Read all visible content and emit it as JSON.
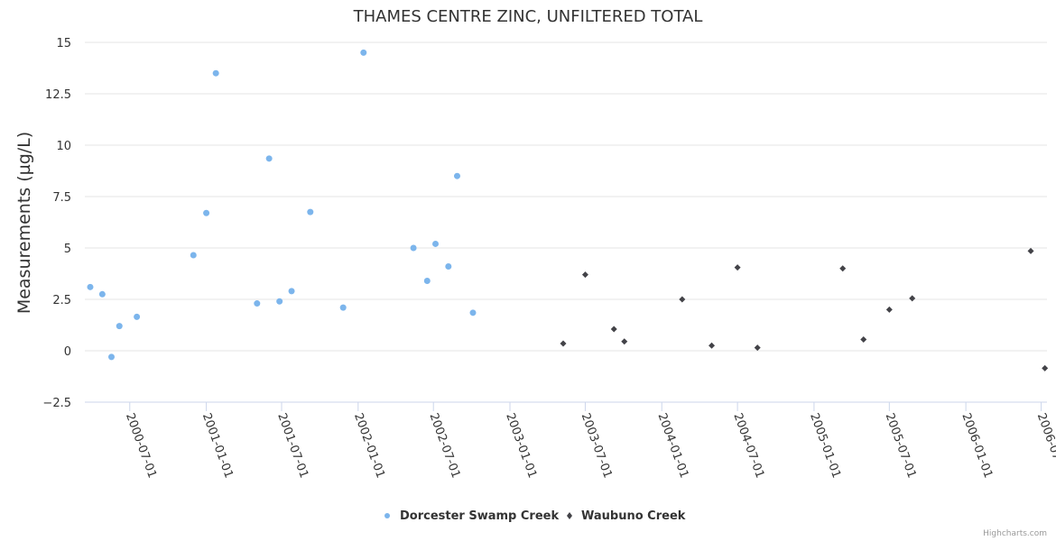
{
  "chart_data": {
    "type": "scatter",
    "title": "THAMES CENTRE ZINC, UNFILTERED TOTAL",
    "xlabel": "",
    "ylabel": "Measurements (µg/L)",
    "ylim": [
      -2.5,
      15
    ],
    "yticks": [
      -2.5,
      0,
      2.5,
      5,
      7.5,
      10,
      12.5,
      15
    ],
    "ytick_labels": [
      "−2.5",
      "0",
      "2.5",
      "5",
      "7.5",
      "10",
      "12.5",
      "15"
    ],
    "xlim": [
      "2000-03-15",
      "2006-07-15"
    ],
    "xticks": [
      "2000-07-01",
      "2001-01-01",
      "2001-07-01",
      "2002-01-01",
      "2002-07-01",
      "2003-01-01",
      "2003-07-01",
      "2004-01-01",
      "2004-07-01",
      "2005-01-01",
      "2005-07-01",
      "2006-01-01",
      "2006-07-01"
    ],
    "grid": true,
    "legend_position": "bottom-center",
    "series": [
      {
        "name": "Dorcester Swamp Creek",
        "color": "#7cb5ec",
        "marker": "circle",
        "points": [
          {
            "x": "2000-03-28",
            "y": 3.1
          },
          {
            "x": "2000-04-26",
            "y": 2.75
          },
          {
            "x": "2000-05-18",
            "y": -0.3
          },
          {
            "x": "2000-06-06",
            "y": 1.2
          },
          {
            "x": "2000-07-18",
            "y": 1.65
          },
          {
            "x": "2000-12-01",
            "y": 4.65
          },
          {
            "x": "2001-01-01",
            "y": 6.7
          },
          {
            "x": "2001-01-24",
            "y": 13.5
          },
          {
            "x": "2001-05-03",
            "y": 2.3
          },
          {
            "x": "2001-06-01",
            "y": 9.35
          },
          {
            "x": "2001-06-26",
            "y": 2.4
          },
          {
            "x": "2001-07-25",
            "y": 2.9
          },
          {
            "x": "2001-09-08",
            "y": 6.75
          },
          {
            "x": "2001-11-26",
            "y": 2.1
          },
          {
            "x": "2002-01-14",
            "y": 14.5
          },
          {
            "x": "2002-05-14",
            "y": 5.0
          },
          {
            "x": "2002-06-16",
            "y": 3.4
          },
          {
            "x": "2002-07-06",
            "y": 5.2
          },
          {
            "x": "2002-08-06",
            "y": 4.1
          },
          {
            "x": "2002-08-27",
            "y": 8.5
          },
          {
            "x": "2002-10-04",
            "y": 1.85
          }
        ]
      },
      {
        "name": "Waubuno Creek",
        "color": "#434348",
        "marker": "diamond",
        "points": [
          {
            "x": "2003-05-09",
            "y": 0.35
          },
          {
            "x": "2003-07-01",
            "y": 3.7
          },
          {
            "x": "2003-09-08",
            "y": 1.05
          },
          {
            "x": "2003-10-03",
            "y": 0.45
          },
          {
            "x": "2004-02-19",
            "y": 2.5
          },
          {
            "x": "2004-04-30",
            "y": 0.25
          },
          {
            "x": "2004-07-01",
            "y": 4.05
          },
          {
            "x": "2004-08-18",
            "y": 0.15
          },
          {
            "x": "2005-03-11",
            "y": 4.0
          },
          {
            "x": "2005-04-30",
            "y": 0.55
          },
          {
            "x": "2005-07-01",
            "y": 2.0
          },
          {
            "x": "2005-08-25",
            "y": 2.55
          },
          {
            "x": "2006-06-06",
            "y": 4.85
          },
          {
            "x": "2006-07-10",
            "y": -0.85
          }
        ]
      }
    ]
  },
  "credits": "Highcharts.com"
}
